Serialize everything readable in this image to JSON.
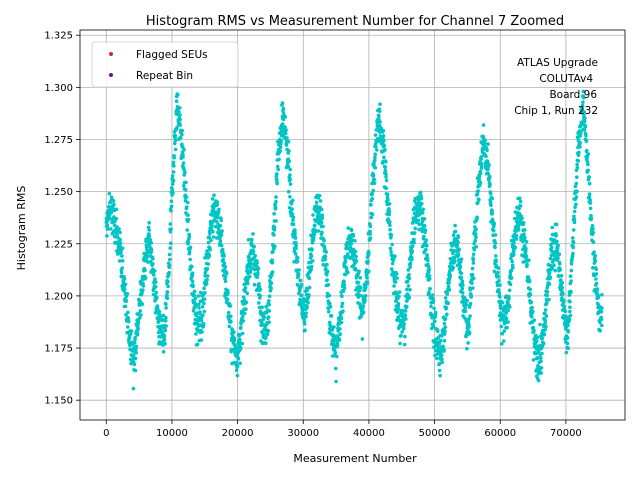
{
  "chart_data": {
    "type": "scatter",
    "title": "Histogram RMS vs Measurement Number for Channel 7 Zoomed",
    "xlabel": "Measurement Number",
    "ylabel": "Histogram RMS",
    "xlim": [
      -4000,
      79000
    ],
    "ylim": [
      1.1405,
      1.3275
    ],
    "grid": true,
    "xticks": [
      0,
      10000,
      20000,
      30000,
      40000,
      50000,
      60000,
      70000
    ],
    "xtick_labels": [
      "0",
      "10000",
      "20000",
      "30000",
      "40000",
      "50000",
      "60000",
      "70000"
    ],
    "yticks": [
      1.15,
      1.175,
      1.2,
      1.225,
      1.25,
      1.275,
      1.3,
      1.325
    ],
    "ytick_labels": [
      "1.150",
      "1.175",
      "1.200",
      "1.225",
      "1.250",
      "1.275",
      "1.300",
      "1.325"
    ],
    "legend": {
      "placement": "upper-left",
      "entries": [
        {
          "label": "Flagged SEUs",
          "color": "#d62728"
        },
        {
          "label": "Repeat Bin",
          "color": "#6a0dad"
        }
      ]
    },
    "annotation": [
      "ATLAS Upgrade",
      "COLUTAv4",
      "Board 96",
      "Chip 1, Run 232"
    ],
    "series": [
      {
        "name": "Histogram RMS",
        "color": "#00c5c5",
        "x_range": [
          0,
          75500
        ],
        "profile_x": [
          0,
          500,
          1200,
          2000,
          2800,
          3500,
          4200,
          5000,
          5800,
          6500,
          7200,
          8000,
          8800,
          9500,
          10200,
          10800,
          11500,
          12300,
          13000,
          13800,
          14600,
          15300,
          16000,
          16800,
          17600,
          18400,
          19200,
          20000,
          20800,
          21600,
          22400,
          23200,
          24000,
          24800,
          25500,
          26200,
          27000,
          27800,
          28600,
          29400,
          30200,
          31000,
          31800,
          32600,
          33400,
          34200,
          35000,
          35800,
          36600,
          37400,
          38200,
          39000,
          39800,
          40600,
          41400,
          42200,
          43000,
          43800,
          44600,
          45400,
          46200,
          47000,
          47800,
          48600,
          49400,
          50200,
          51000,
          51800,
          52600,
          53400,
          54200,
          55000,
          55800,
          56600,
          57400,
          58200,
          59000,
          59800,
          60600,
          61400,
          62200,
          63000,
          63800,
          64600,
          65400,
          66200,
          67000,
          67800,
          68600,
          69400,
          70200,
          71000,
          71800,
          72600,
          73400,
          74200,
          75000,
          75500
        ],
        "profile_y": [
          1.232,
          1.242,
          1.236,
          1.222,
          1.205,
          1.18,
          1.17,
          1.192,
          1.214,
          1.228,
          1.21,
          1.185,
          1.178,
          1.21,
          1.262,
          1.292,
          1.275,
          1.238,
          1.208,
          1.188,
          1.19,
          1.215,
          1.236,
          1.24,
          1.225,
          1.2,
          1.178,
          1.172,
          1.19,
          1.215,
          1.222,
          1.205,
          1.182,
          1.196,
          1.228,
          1.268,
          1.285,
          1.26,
          1.228,
          1.205,
          1.19,
          1.212,
          1.238,
          1.24,
          1.215,
          1.185,
          1.172,
          1.195,
          1.222,
          1.225,
          1.21,
          1.19,
          1.215,
          1.255,
          1.285,
          1.272,
          1.24,
          1.21,
          1.19,
          1.186,
          1.212,
          1.238,
          1.244,
          1.225,
          1.2,
          1.178,
          1.172,
          1.195,
          1.22,
          1.225,
          1.205,
          1.182,
          1.21,
          1.25,
          1.275,
          1.262,
          1.23,
          1.2,
          1.185,
          1.205,
          1.232,
          1.24,
          1.222,
          1.195,
          1.172,
          1.17,
          1.195,
          1.222,
          1.225,
          1.2,
          1.178,
          1.22,
          1.268,
          1.292,
          1.26,
          1.22,
          1.192,
          1.19
        ],
        "noise_sd": 0.0095,
        "point_count": 3000
      }
    ]
  }
}
